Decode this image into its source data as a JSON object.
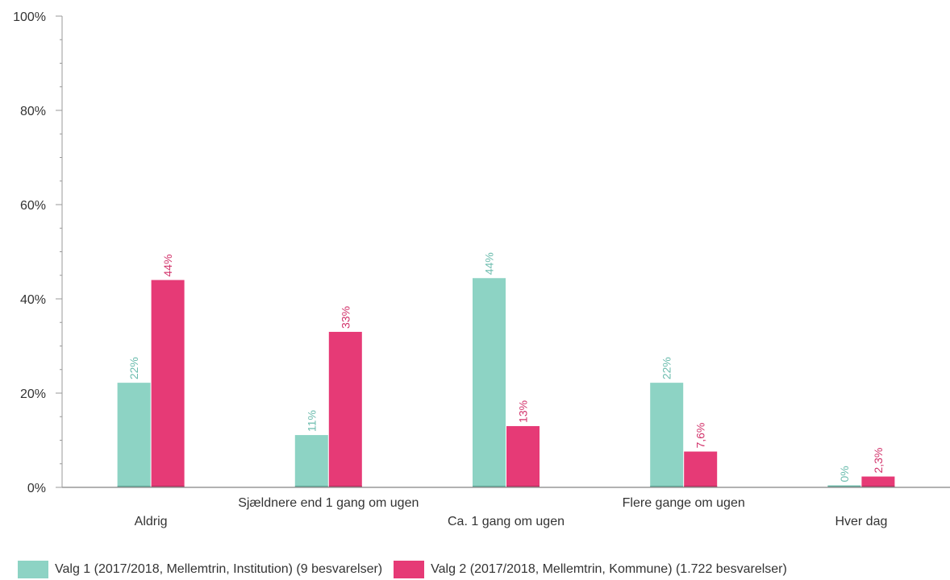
{
  "chart_data": {
    "type": "bar",
    "categories": [
      "Aldrig",
      "Sjældnere end 1 gang om ugen",
      "Ca. 1 gang om ugen",
      "Flere gange om ugen",
      "Hver dag"
    ],
    "series": [
      {
        "name": "Valg 1 (2017/2018, Mellemtrin, Institution) (9 besvarelser)",
        "color": "#8dd3c4",
        "label_color": "#6cbcae",
        "values": [
          22.2,
          11.1,
          44.4,
          22.2,
          0
        ],
        "labels": [
          "22%",
          "11%",
          "44%",
          "22%",
          "0%"
        ]
      },
      {
        "name": "Valg 2 (2017/2018, Mellemtrin, Kommune) (1.722 besvarelser)",
        "color": "#e63a76",
        "label_color": "#d2336b",
        "values": [
          44.0,
          33.0,
          13.0,
          7.6,
          2.3
        ],
        "labels": [
          "44%",
          "33%",
          "13%",
          "7,6%",
          "2,3%"
        ]
      }
    ],
    "y_ticks": [
      0,
      20,
      40,
      60,
      80,
      100
    ],
    "y_tick_labels": [
      "0%",
      "20%",
      "40%",
      "60%",
      "80%",
      "100%"
    ],
    "ylim": [
      0,
      100
    ],
    "title": "",
    "xlabel": "",
    "ylabel": "",
    "legend_position": "bottom",
    "grid": false
  }
}
